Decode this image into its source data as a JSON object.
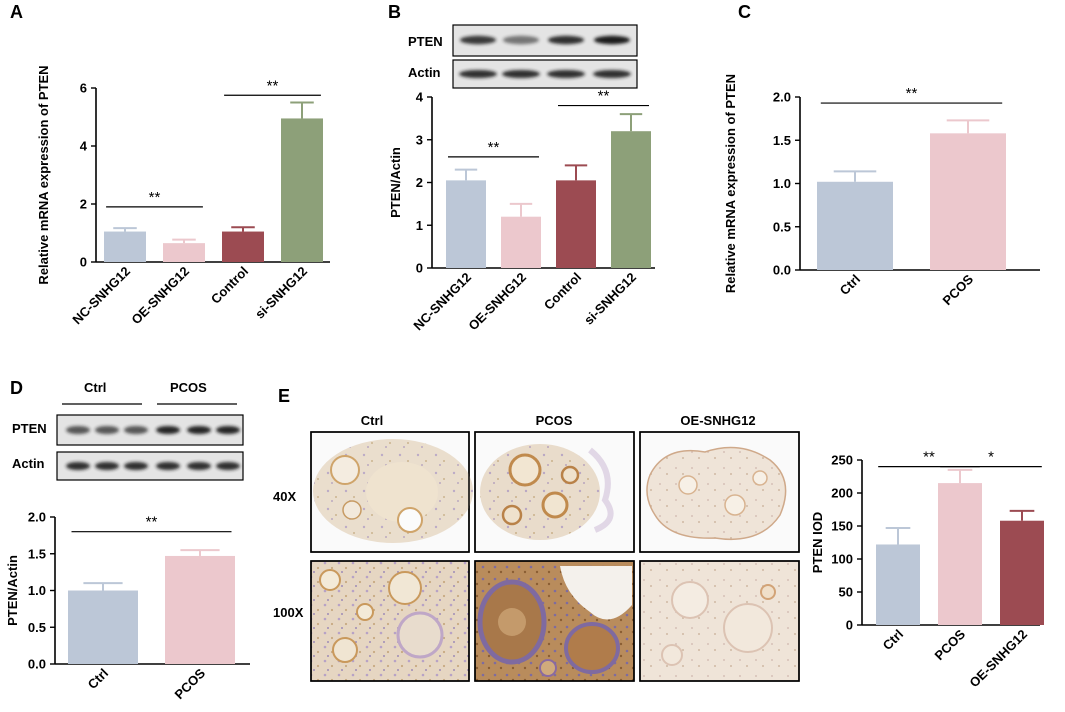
{
  "panels": {
    "A": "A",
    "B": "B",
    "C": "C",
    "D": "D",
    "E": "E"
  },
  "colors": {
    "blue_grey": "#bcc7d7",
    "pink": "#ecc8cd",
    "maroon": "#9c4b52",
    "green": "#8da079",
    "blot_bg": "#e4e4e4",
    "band": "#1c1c1c"
  },
  "blot_B": {
    "labels": [
      "PTEN",
      "Actin"
    ],
    "pten_intensity": [
      0.85,
      0.55,
      0.9,
      1.0
    ],
    "actin_intensity": [
      0.9,
      0.9,
      0.9,
      0.9
    ]
  },
  "blot_D": {
    "group_labels": [
      "Ctrl",
      "PCOS"
    ],
    "labels": [
      "PTEN",
      "Actin"
    ],
    "pten_intensity": [
      0.7,
      0.7,
      0.7,
      0.95,
      0.95,
      0.95
    ],
    "actin_intensity": [
      0.9,
      0.9,
      0.9,
      0.9,
      0.9,
      0.9
    ]
  },
  "histology_E": {
    "columns": [
      "Ctrl",
      "PCOS",
      "OE-SNHG12"
    ],
    "rows": [
      "40X",
      "100X"
    ]
  },
  "chart_data": [
    {
      "id": "A",
      "type": "bar",
      "categories": [
        "NC-SNHG12",
        "OE-SNHG12",
        "Control",
        "si-SNHG12"
      ],
      "values": [
        1.05,
        0.65,
        1.05,
        4.95
      ],
      "errors": [
        0.12,
        0.12,
        0.15,
        0.55
      ],
      "colors": [
        "#bcc7d7",
        "#ecc8cd",
        "#9c4b52",
        "#8da079"
      ],
      "ylabel": "Relative mRNA expression of PTEN",
      "ylim": [
        0,
        6
      ],
      "yticks": [
        0,
        2,
        4,
        6
      ],
      "significance": [
        {
          "from": 0,
          "to": 1,
          "y": 1.9,
          "label": "**"
        },
        {
          "from": 2,
          "to": 3,
          "y": 5.75,
          "label": "**"
        }
      ]
    },
    {
      "id": "B",
      "type": "bar",
      "categories": [
        "NC-SNHG12",
        "OE-SNHG12",
        "Control",
        "si-SNHG12"
      ],
      "values": [
        2.05,
        1.2,
        2.05,
        3.2
      ],
      "errors": [
        0.25,
        0.3,
        0.35,
        0.4
      ],
      "colors": [
        "#bcc7d7",
        "#ecc8cd",
        "#9c4b52",
        "#8da079"
      ],
      "ylabel": "PTEN/Actin",
      "ylim": [
        0,
        4
      ],
      "yticks": [
        0,
        1,
        2,
        3,
        4
      ],
      "significance": [
        {
          "from": 0,
          "to": 1,
          "y": 2.6,
          "label": "**"
        },
        {
          "from": 2,
          "to": 3,
          "y": 3.8,
          "label": "**"
        }
      ]
    },
    {
      "id": "C",
      "type": "bar",
      "categories": [
        "Ctrl",
        "PCOS"
      ],
      "values": [
        1.02,
        1.58
      ],
      "errors": [
        0.12,
        0.15
      ],
      "colors": [
        "#bcc7d7",
        "#ecc8cd"
      ],
      "ylabel": "Relative mRNA expression of PTEN",
      "ylim": [
        0,
        2.0
      ],
      "yticks": [
        0.0,
        0.5,
        1.0,
        1.5,
        2.0
      ],
      "tick_format": 1,
      "significance": [
        {
          "from": 0,
          "to": 1,
          "y": 1.93,
          "label": "**"
        }
      ]
    },
    {
      "id": "D",
      "type": "bar",
      "categories": [
        "Ctrl",
        "PCOS"
      ],
      "values": [
        1.0,
        1.47
      ],
      "errors": [
        0.1,
        0.08
      ],
      "colors": [
        "#bcc7d7",
        "#ecc8cd"
      ],
      "ylabel": "PTEN/Actin",
      "ylim": [
        0,
        2.0
      ],
      "yticks": [
        0.0,
        0.5,
        1.0,
        1.5,
        2.0
      ],
      "tick_format": 1,
      "significance": [
        {
          "from": 0,
          "to": 1,
          "y": 1.8,
          "label": "**"
        }
      ]
    },
    {
      "id": "E",
      "type": "bar",
      "categories": [
        "Ctrl",
        "PCOS",
        "OE-SNHG12"
      ],
      "values": [
        122,
        215,
        158
      ],
      "errors": [
        25,
        20,
        15
      ],
      "colors": [
        "#bcc7d7",
        "#ecc8cd",
        "#9c4b52"
      ],
      "ylabel": "PTEN IOD",
      "ylim": [
        0,
        250
      ],
      "yticks": [
        0,
        50,
        100,
        150,
        200,
        250
      ],
      "significance": [
        {
          "from": 0,
          "to": 1,
          "y": 240,
          "label": "**"
        },
        {
          "from": 1,
          "to": 2,
          "y": 240,
          "label": "*"
        }
      ]
    }
  ]
}
